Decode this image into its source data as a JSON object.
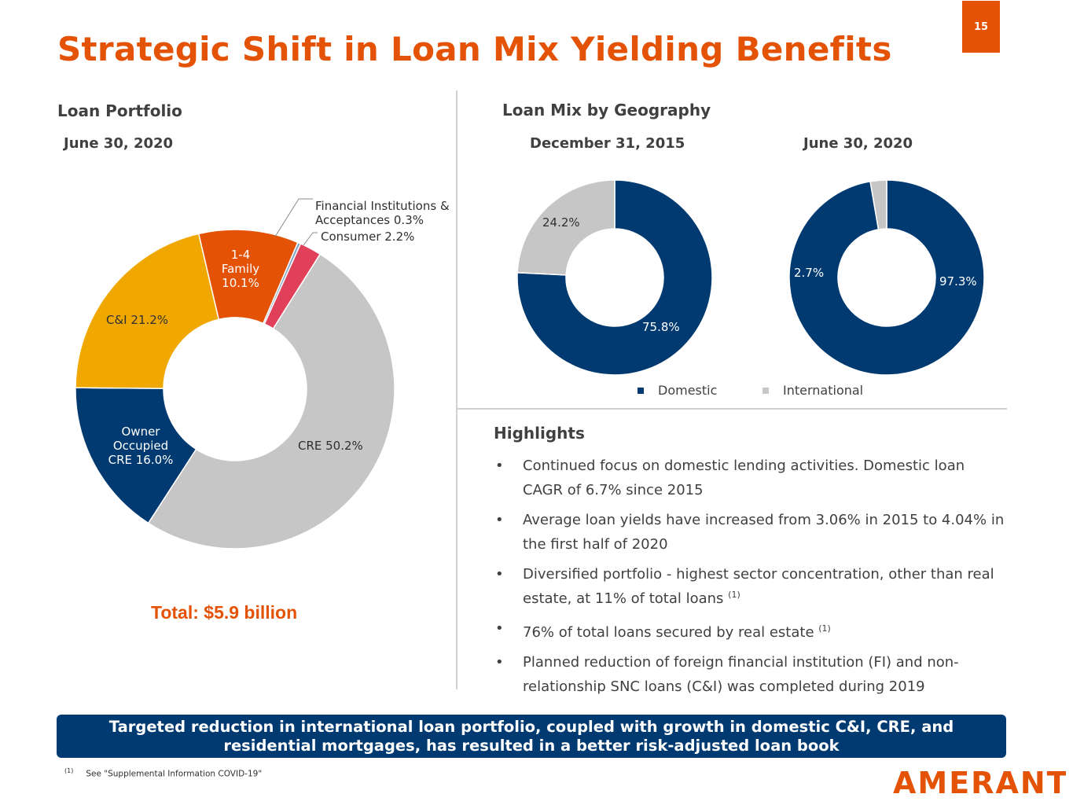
{
  "header": {
    "title": "Strategic Shift in Loan Mix Yielding Benefits",
    "page_number": "15",
    "accent_color": "#e35205"
  },
  "left_panel": {
    "heading": "Loan Portfolio",
    "date": "June 30, 2020",
    "total": "Total: $5.9 billion",
    "labels": {
      "fi_line1": "Financial Institutions &",
      "fi_line2": "Acceptances 0.3%",
      "consumer": "Consumer 2.2%",
      "family_line1": "1-4",
      "family_line2": "Family",
      "family_line3": "10.1%",
      "ci": "C&I 21.2%",
      "oo_line1": "Owner",
      "oo_line2": "Occupied",
      "oo_line3": "CRE 16.0%",
      "cre": "CRE 50.2%"
    }
  },
  "right_panel": {
    "heading": "Loan Mix by Geography",
    "date_left": "December 31, 2015",
    "date_right": "June 30, 2020",
    "labels": {
      "d2015_intl": "24.2%",
      "d2015_dom": "75.8%",
      "d2020_intl": "2.7%",
      "d2020_dom": "97.3%"
    },
    "legend": {
      "domestic": "Domestic",
      "international": "International"
    }
  },
  "highlights": {
    "title": "Highlights",
    "bullet_glyph": "•",
    "items": [
      {
        "text": "Continued focus on domestic lending activities. Domestic loan CAGR of 6.7% since 2015",
        "sup": ""
      },
      {
        "text": "Average loan yields have increased from 3.06% in 2015 to 4.04% in the first half of 2020",
        "sup": ""
      },
      {
        "text": "Diversified portfolio - highest sector concentration, other than real estate, at 11% of total loans ",
        "sup": "(1)"
      },
      {
        "text": "76% of total loans secured by real estate ",
        "sup": "(1)"
      },
      {
        "text": "Planned reduction of foreign financial institution (FI) and non-relationship SNC loans (C&I) was completed during 2019",
        "sup": ""
      }
    ]
  },
  "banner": {
    "text": "Targeted reduction in international loan portfolio, coupled with growth in domestic C&I, CRE, and residential mortgages, has resulted in a better risk-adjusted loan book"
  },
  "footnote": {
    "marker": "(1)",
    "text": "See \"Supplemental Information COVID-19\""
  },
  "logo": {
    "text": "AMERANT"
  },
  "chart_data": [
    {
      "type": "pie",
      "donut": true,
      "title": "Loan Portfolio",
      "subtitle": "June 30, 2020",
      "categories": [
        "CRE",
        "Owner Occupied CRE",
        "C&I",
        "1-4 Family",
        "Financial Institutions & Acceptances",
        "Consumer"
      ],
      "values": [
        50.2,
        16.0,
        21.2,
        10.1,
        0.3,
        2.2
      ],
      "colors": [
        "#c6c6c6",
        "#003a70",
        "#f0a800",
        "#e35205",
        "#7fa1c2",
        "#e0405a"
      ]
    },
    {
      "type": "pie",
      "donut": true,
      "title": "Loan Mix by Geography",
      "subtitle": "December 31, 2015",
      "categories": [
        "Domestic",
        "International"
      ],
      "values": [
        75.8,
        24.2
      ],
      "colors": [
        "#003a70",
        "#c6c6c6"
      ]
    },
    {
      "type": "pie",
      "donut": true,
      "title": "Loan Mix by Geography",
      "subtitle": "June 30, 2020",
      "categories": [
        "Domestic",
        "International"
      ],
      "values": [
        97.3,
        2.7
      ],
      "colors": [
        "#003a70",
        "#c6c6c6"
      ]
    }
  ]
}
